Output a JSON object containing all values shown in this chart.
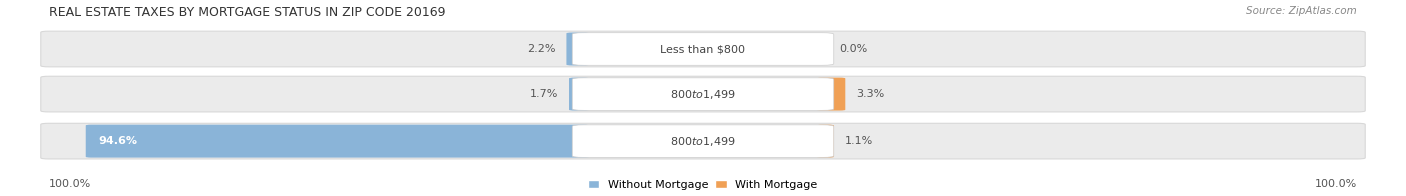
{
  "title": "REAL ESTATE TAXES BY MORTGAGE STATUS IN ZIP CODE 20169",
  "source": "Source: ZipAtlas.com",
  "rows": [
    {
      "label": "Less than $800",
      "without_mortgage_pct": 2.2,
      "with_mortgage_pct": 0.0
    },
    {
      "label": "$800 to $1,499",
      "without_mortgage_pct": 1.7,
      "with_mortgage_pct": 3.3
    },
    {
      "label": "$800 to $1,499",
      "without_mortgage_pct": 94.6,
      "with_mortgage_pct": 1.1
    }
  ],
  "max_pct": 100.0,
  "left_label": "100.0%",
  "right_label": "100.0%",
  "without_mortgage_color": "#8ab4d8",
  "with_mortgage_color": "#f0a055",
  "bar_bg_color": "#ebebeb",
  "bar_bg_edge_color": "#d8d8d8",
  "legend_without": "Without Mortgage",
  "legend_with": "With Mortgage",
  "title_fontsize": 9,
  "label_fontsize": 8,
  "source_fontsize": 7.5
}
